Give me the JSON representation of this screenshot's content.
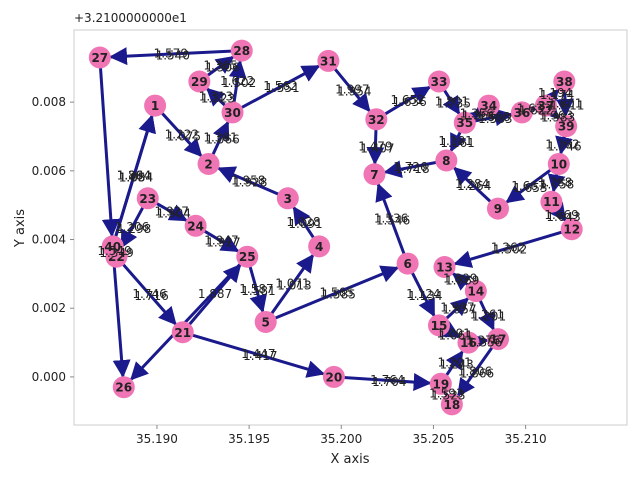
{
  "chart_data": {
    "type": "graph",
    "title": "",
    "offset_label": "+3.2100000000e1",
    "xlabel": "X axis",
    "ylabel": "Y axis",
    "xlim": [
      35.1855,
      35.2155
    ],
    "ylim": [
      -0.0014,
      0.0101
    ],
    "xticks": [
      35.19,
      35.195,
      35.2,
      35.205,
      35.21
    ],
    "xtick_labels": [
      "35.190",
      "35.195",
      "35.200",
      "35.205",
      "35.210"
    ],
    "yticks": [
      0.0,
      0.002,
      0.004,
      0.006,
      0.008
    ],
    "ytick_labels": [
      "0.000",
      "0.002",
      "0.004",
      "0.006",
      "0.008"
    ],
    "grid": false,
    "colors": {
      "node": "#f075b5",
      "edge": "#1a1a8c",
      "axis": "#cccccc",
      "text": "#222222"
    },
    "nodes": [
      {
        "id": "1",
        "x": 35.1899,
        "y": 0.0079
      },
      {
        "id": "2",
        "x": 35.1928,
        "y": 0.0062
      },
      {
        "id": "3",
        "x": 35.1971,
        "y": 0.0052
      },
      {
        "id": "4",
        "x": 35.1988,
        "y": 0.0038
      },
      {
        "id": "5",
        "x": 35.1959,
        "y": 0.0016
      },
      {
        "id": "6",
        "x": 35.2036,
        "y": 0.0033
      },
      {
        "id": "7",
        "x": 35.2018,
        "y": 0.0059
      },
      {
        "id": "8",
        "x": 35.2057,
        "y": 0.0063
      },
      {
        "id": "9",
        "x": 35.2085,
        "y": 0.0049
      },
      {
        "id": "10",
        "x": 35.2118,
        "y": 0.0062
      },
      {
        "id": "11",
        "x": 35.2114,
        "y": 0.0051
      },
      {
        "id": "12",
        "x": 35.2125,
        "y": 0.0043
      },
      {
        "id": "13",
        "x": 35.2056,
        "y": 0.0032
      },
      {
        "id": "14",
        "x": 35.2073,
        "y": 0.0025
      },
      {
        "id": "15",
        "x": 35.2053,
        "y": 0.0015
      },
      {
        "id": "16",
        "x": 35.2069,
        "y": 0.001
      },
      {
        "id": "17",
        "x": 35.2085,
        "y": 0.0011
      },
      {
        "id": "18",
        "x": 35.206,
        "y": -0.0008
      },
      {
        "id": "19",
        "x": 35.2054,
        "y": -0.0002
      },
      {
        "id": "20",
        "x": 35.1996,
        "y": 0.0
      },
      {
        "id": "21",
        "x": 35.1914,
        "y": 0.0013
      },
      {
        "id": "22",
        "x": 35.1878,
        "y": 0.0035
      },
      {
        "id": "23",
        "x": 35.1895,
        "y": 0.0052
      },
      {
        "id": "24",
        "x": 35.1921,
        "y": 0.0044
      },
      {
        "id": "25",
        "x": 35.1949,
        "y": 0.0035
      },
      {
        "id": "26",
        "x": 35.1882,
        "y": -0.0003
      },
      {
        "id": "27",
        "x": 35.1869,
        "y": 0.0093
      },
      {
        "id": "28",
        "x": 35.1946,
        "y": 0.0095
      },
      {
        "id": "29",
        "x": 35.1923,
        "y": 0.0086
      },
      {
        "id": "30",
        "x": 35.1941,
        "y": 0.0077
      },
      {
        "id": "31",
        "x": 35.1993,
        "y": 0.0092
      },
      {
        "id": "32",
        "x": 35.2019,
        "y": 0.0075
      },
      {
        "id": "33",
        "x": 35.2053,
        "y": 0.0086
      },
      {
        "id": "34",
        "x": 35.208,
        "y": 0.0079
      },
      {
        "id": "35",
        "x": 35.2067,
        "y": 0.0074
      },
      {
        "id": "36",
        "x": 35.2098,
        "y": 0.0077
      },
      {
        "id": "37",
        "x": 35.2111,
        "y": 0.0079
      },
      {
        "id": "38",
        "x": 35.2121,
        "y": 0.0086
      },
      {
        "id": "39",
        "x": 35.2122,
        "y": 0.0073
      },
      {
        "id": "40",
        "x": 35.1876,
        "y": 0.0038
      }
    ],
    "edges": [
      {
        "from": "28",
        "to": "27",
        "labels": [
          "1.579",
          "1.540"
        ]
      },
      {
        "from": "27",
        "to": "40",
        "labels": []
      },
      {
        "from": "40",
        "to": "1",
        "labels": [
          "1.264",
          "1.084"
        ]
      },
      {
        "from": "1",
        "to": "2",
        "labels": [
          "1.222",
          "1.075"
        ]
      },
      {
        "from": "2",
        "to": "30",
        "labels": [
          "1.381",
          "1.066"
        ]
      },
      {
        "from": "30",
        "to": "28",
        "labels": [
          "1.622",
          "1.502"
        ]
      },
      {
        "from": "29",
        "to": "28",
        "labels": [
          "1.365",
          "1.306"
        ]
      },
      {
        "from": "30",
        "to": "29",
        "labels": [
          "1.313",
          "1.323"
        ]
      },
      {
        "from": "30",
        "to": "31",
        "labels": [
          "1.562",
          "1.551"
        ]
      },
      {
        "from": "31",
        "to": "32",
        "labels": [
          "1.997",
          "1.954"
        ]
      },
      {
        "from": "32",
        "to": "33",
        "labels": [
          "1.652",
          "1.636"
        ]
      },
      {
        "from": "33",
        "to": "35",
        "labels": [
          "1.801",
          "1.735"
        ]
      },
      {
        "from": "35",
        "to": "34",
        "labels": [
          "1.356",
          "1.366"
        ]
      },
      {
        "from": "34",
        "to": "35",
        "labels": []
      },
      {
        "from": "35",
        "to": "36",
        "labels": [
          "1.568",
          "1.583"
        ]
      },
      {
        "from": "36",
        "to": "37",
        "labels": [
          "1.633",
          "1.622"
        ]
      },
      {
        "from": "37",
        "to": "38",
        "labels": [
          "1.194",
          "1.174"
        ]
      },
      {
        "from": "38",
        "to": "39",
        "labels": [
          "1.601",
          "1.611"
        ]
      },
      {
        "from": "37",
        "to": "39",
        "labels": [
          "1.963",
          "1.983"
        ]
      },
      {
        "from": "39",
        "to": "10",
        "labels": [
          "1.762",
          "1.746"
        ]
      },
      {
        "from": "10",
        "to": "9",
        "labels": [
          "1.667",
          "1.653"
        ]
      },
      {
        "from": "10",
        "to": "11",
        "labels": [
          "1.788",
          "1.758"
        ]
      },
      {
        "from": "11",
        "to": "12",
        "labels": [
          "1.669",
          "1.643"
        ]
      },
      {
        "from": "12",
        "to": "13",
        "labels": [
          "1.262",
          "1.302"
        ]
      },
      {
        "from": "9",
        "to": "8",
        "labels": [
          "1.284",
          "1.264"
        ]
      },
      {
        "from": "8",
        "to": "7",
        "labels": [
          "1.726",
          "1.718"
        ]
      },
      {
        "from": "35",
        "to": "8",
        "labels": [
          "1.181",
          "1.161"
        ]
      },
      {
        "from": "32",
        "to": "7",
        "labels": [
          "1.479",
          "1.407"
        ]
      },
      {
        "from": "6",
        "to": "7",
        "labels": [
          "1.536",
          "1.546"
        ]
      },
      {
        "from": "6",
        "to": "15",
        "labels": [
          "1.124",
          "1.134"
        ]
      },
      {
        "from": "15",
        "to": "14",
        "labels": [
          "1.997",
          "1.957"
        ]
      },
      {
        "from": "15",
        "to": "16",
        "labels": [
          "1.091",
          "1.061"
        ]
      },
      {
        "from": "14",
        "to": "13",
        "labels": [
          "1.899",
          "1.869"
        ]
      },
      {
        "from": "14",
        "to": "17",
        "labels": [
          "1.261",
          "1.201"
        ]
      },
      {
        "from": "16",
        "to": "17",
        "labels": [
          "1.376",
          "1.356"
        ]
      },
      {
        "from": "17",
        "to": "18",
        "labels": [
          "1.806",
          "1.866"
        ]
      },
      {
        "from": "18",
        "to": "19",
        "labels": [
          "1.593",
          "1.523"
        ]
      },
      {
        "from": "19",
        "to": "16",
        "labels": [
          "1.201",
          "1.243"
        ]
      },
      {
        "from": "20",
        "to": "19",
        "labels": [
          "1.764",
          "1.704"
        ]
      },
      {
        "from": "21",
        "to": "20",
        "labels": [
          "1.447",
          "1.417"
        ]
      },
      {
        "from": "5",
        "to": "6",
        "labels": [
          "1.565",
          "1.585"
        ]
      },
      {
        "from": "5",
        "to": "4",
        "labels": [
          "1.071",
          "1.013"
        ]
      },
      {
        "from": "4",
        "to": "3",
        "labels": [
          "1.028",
          "1.091"
        ]
      },
      {
        "from": "3",
        "to": "2",
        "labels": [
          "1.958",
          "1.928"
        ]
      },
      {
        "from": "25",
        "to": "5",
        "labels": [
          "1.587",
          "1.581"
        ]
      },
      {
        "from": "24",
        "to": "25",
        "labels": [
          "1.947",
          "1.927"
        ]
      },
      {
        "from": "23",
        "to": "24",
        "labels": [
          "1.927",
          "1.904"
        ]
      },
      {
        "from": "23",
        "to": "22",
        "labels": [
          "1.206",
          "1.298"
        ]
      },
      {
        "from": "22",
        "to": "21",
        "labels": [
          "1.746",
          "1.716"
        ]
      },
      {
        "from": "21",
        "to": "25",
        "labels": [
          "1.887"
        ]
      },
      {
        "from": "25",
        "to": "26",
        "labels": []
      },
      {
        "from": "40",
        "to": "26",
        "labels": []
      },
      {
        "from": "22",
        "to": "40",
        "labels": [
          "1.549",
          "1.349"
        ]
      },
      {
        "from": "40",
        "to": "1",
        "labels": [
          "1.894",
          "1.854"
        ]
      }
    ]
  }
}
